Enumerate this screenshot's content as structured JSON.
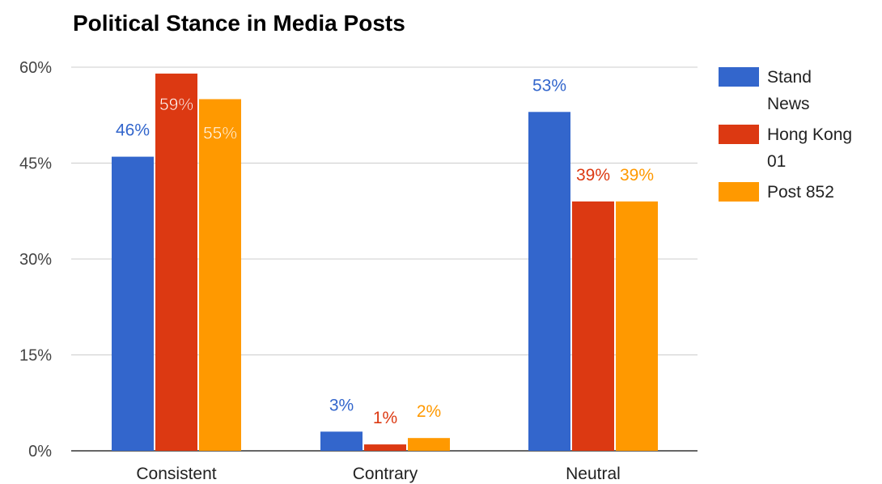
{
  "chart_data": {
    "type": "bar",
    "title": "Political Stance in Media Posts",
    "categories": [
      "Consistent",
      "Contrary",
      "Neutral"
    ],
    "series": [
      {
        "name": "Stand News",
        "legend_lines": [
          "Stand",
          "News"
        ],
        "values": [
          46,
          3,
          53
        ],
        "labels": [
          "46%",
          "3%",
          "53%"
        ]
      },
      {
        "name": "Hong Kong 01",
        "legend_lines": [
          "Hong Kong",
          "01"
        ],
        "values": [
          59,
          1,
          39
        ],
        "labels": [
          "59%",
          "1%",
          "39%"
        ]
      },
      {
        "name": "Post 852",
        "legend_lines": [
          "Post 852"
        ],
        "values": [
          55,
          2,
          39
        ],
        "labels": [
          "55%",
          "2%",
          "39%"
        ]
      }
    ],
    "ylim": [
      0,
      60
    ],
    "yticks": [
      0,
      15,
      30,
      45,
      60
    ],
    "ytick_labels": [
      "0%",
      "15%",
      "30%",
      "45%",
      "60%"
    ],
    "xlabel": "",
    "ylabel": "",
    "grid": true,
    "legend_position": "right",
    "colors": [
      "#3366cc",
      "#dc3912",
      "#ff9900"
    ]
  }
}
